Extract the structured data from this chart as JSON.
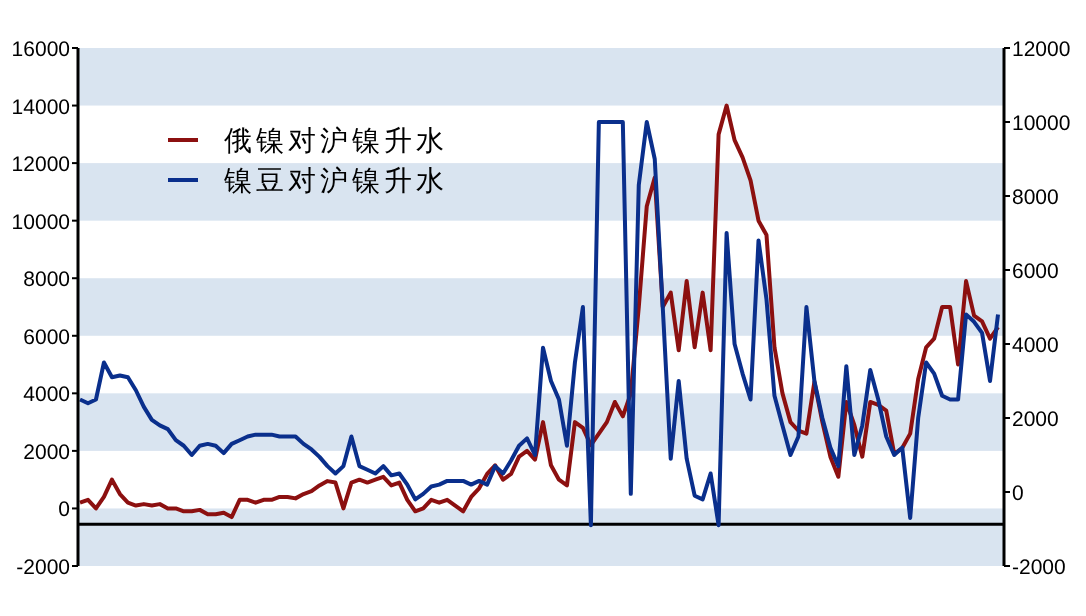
{
  "chart_data": {
    "type": "line",
    "categories": [
      null,
      null,
      null,
      null,
      null,
      null,
      null,
      null,
      null,
      null,
      null,
      null,
      null,
      null,
      null,
      null,
      null,
      null,
      null,
      null,
      null,
      null,
      null,
      null,
      null,
      null,
      null,
      null,
      null,
      null,
      null,
      null,
      null,
      null,
      null,
      null,
      null,
      null,
      null,
      null,
      null,
      null,
      null,
      null,
      null,
      null,
      null,
      null,
      null,
      null,
      null,
      null,
      null,
      null,
      null,
      null,
      null,
      null,
      null,
      null,
      null,
      null,
      null,
      null,
      null,
      null,
      null,
      null,
      null,
      null,
      null,
      null,
      null,
      null,
      null,
      null,
      null,
      null,
      null,
      null,
      null,
      null,
      null,
      null,
      null,
      null,
      null,
      null,
      null,
      null,
      null,
      null,
      null,
      null,
      null,
      null,
      null,
      null,
      null,
      null,
      null,
      null,
      null,
      null,
      null,
      null,
      null,
      null,
      null,
      null,
      null,
      null,
      null,
      null,
      null,
      null
    ],
    "series": [
      {
        "name": "俄镍对沪镍升水",
        "color": "#8c1010",
        "values": [
          200,
          300,
          0,
          400,
          1000,
          500,
          200,
          100,
          150,
          100,
          150,
          0,
          0,
          -100,
          -100,
          -50,
          -200,
          -200,
          -150,
          -300,
          300,
          300,
          200,
          300,
          300,
          400,
          400,
          350,
          500,
          600,
          800,
          950,
          900,
          0,
          900,
          1000,
          900,
          1000,
          1100,
          800,
          900,
          300,
          -100,
          0,
          300,
          200,
          300,
          100,
          -100,
          400,
          700,
          1200,
          1500,
          1000,
          1200,
          1800,
          2000,
          1700,
          3000,
          1500,
          1000,
          800,
          3000,
          2800,
          2200,
          2600,
          3000,
          3700,
          3200,
          4000,
          7000,
          10500,
          11500,
          7000,
          7500,
          5500,
          7900,
          5600,
          7500,
          5500,
          13000,
          14000,
          12800,
          12200,
          11400,
          10000,
          9500,
          5600,
          4000,
          3000,
          2700,
          2600,
          4400,
          3000,
          1800,
          1100,
          3700,
          2900,
          1800,
          3700,
          3600,
          3400,
          1900,
          2100,
          2600,
          4500,
          5600,
          5900,
          7000,
          7000,
          5000,
          7900,
          6700,
          6500,
          5900,
          6300
        ]
      },
      {
        "name": "镍豆对沪镍升水",
        "color": "#0a2f8c",
        "axis": "y2",
        "values": [
          2500,
          2400,
          2500,
          3500,
          3100,
          3150,
          3100,
          2750,
          2300,
          1950,
          1800,
          1700,
          1400,
          1250,
          1000,
          1250,
          1300,
          1250,
          1050,
          1300,
          1400,
          1500,
          1550,
          1550,
          1550,
          1500,
          1500,
          1500,
          1300,
          1150,
          950,
          700,
          500,
          700,
          1500,
          700,
          600,
          500,
          700,
          450,
          500,
          200,
          -200,
          -50,
          150,
          200,
          300,
          300,
          300,
          200,
          300,
          200,
          700,
          500,
          850,
          1250,
          1450,
          1000,
          3900,
          3000,
          2500,
          1250,
          3500,
          5000,
          -900,
          10000,
          10000,
          10000,
          10000,
          -50,
          8300,
          10000,
          9000,
          5000,
          900,
          3000,
          900,
          -100,
          -200,
          500,
          -900,
          7000,
          4000,
          3200,
          2500,
          6800,
          5200,
          2600,
          1800,
          1000,
          1500,
          5000,
          3000,
          2000,
          1200,
          700,
          3400,
          1000,
          1800,
          3300,
          2500,
          1500,
          1000,
          1200,
          -700,
          2000,
          3500,
          3200,
          2600,
          2500,
          2500,
          4800,
          4600,
          4300,
          3000,
          4800
        ]
      }
    ],
    "ylim": [
      -2000,
      16000
    ],
    "yticks": [
      -2000,
      0,
      2000,
      4000,
      6000,
      8000,
      10000,
      12000,
      14000,
      16000
    ],
    "y2lim": [
      -2000,
      12000
    ],
    "y2ticks": [
      -2000,
      0,
      2000,
      4000,
      6000,
      8000,
      10000,
      12000
    ],
    "bands": [
      {
        "axis": "y",
        "from": 14000,
        "to": 16000,
        "color": "#d9e4f0"
      },
      {
        "axis": "y",
        "from": 10000,
        "to": 12000,
        "color": "#d9e4f0"
      },
      {
        "axis": "y",
        "from": 6000,
        "to": 8000,
        "color": "#d9e4f0"
      },
      {
        "axis": "y",
        "from": 2000,
        "to": 4000,
        "color": "#d9e4f0"
      },
      {
        "axis": "y",
        "from": -2000,
        "to": 0,
        "color": "#d9e4f0"
      }
    ],
    "legend": "top left",
    "line_style": "solid",
    "marker": "none",
    "ref_lines": [
      {
        "axis": "y",
        "value": -550,
        "color": "#000000"
      }
    ]
  }
}
